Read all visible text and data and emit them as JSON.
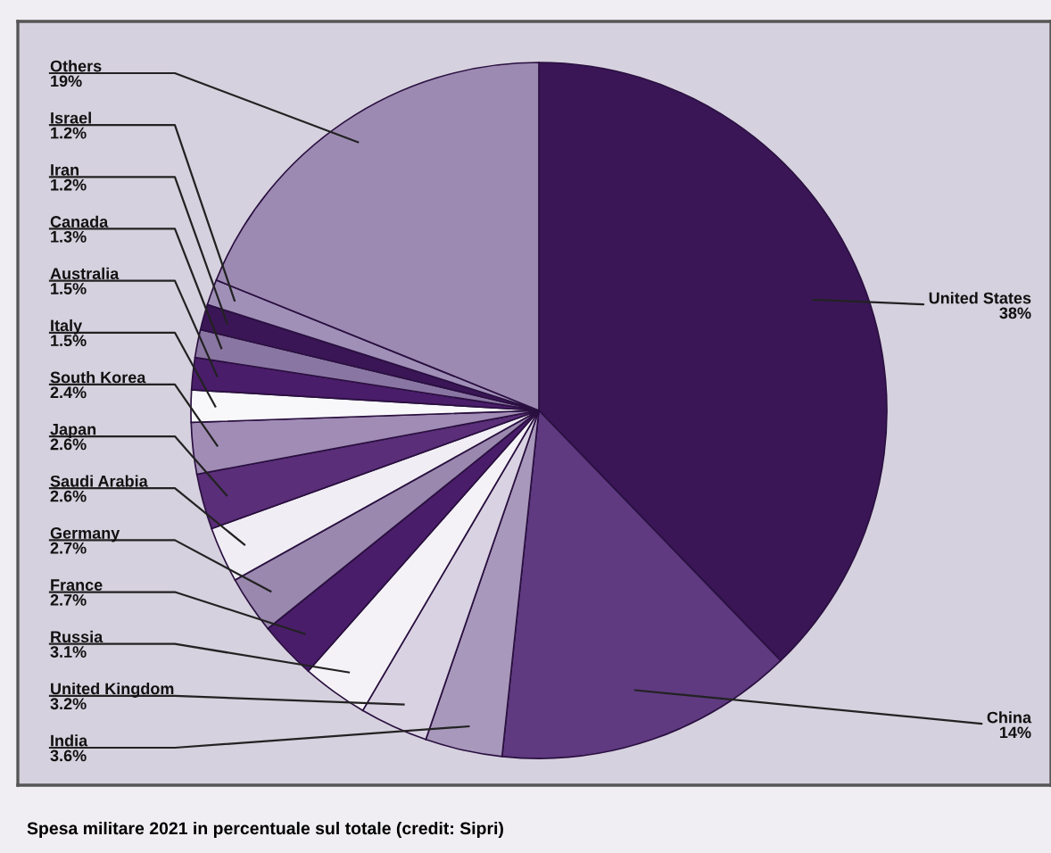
{
  "chart_data": {
    "type": "pie",
    "categories": [
      "United States",
      "China",
      "India",
      "United Kingdom",
      "Russia",
      "France",
      "Germany",
      "Saudi Arabia",
      "Japan",
      "South Korea",
      "Italy",
      "Australia",
      "Canada",
      "Iran",
      "Israel",
      "Others"
    ],
    "values": [
      38,
      14,
      3.6,
      3.2,
      3.1,
      2.7,
      2.7,
      2.6,
      2.6,
      2.4,
      1.5,
      1.5,
      1.3,
      1.2,
      1.2,
      19
    ],
    "colors": [
      "#3a1656",
      "#5f3a80",
      "#a898bb",
      "#d9d2e2",
      "#f4f2f6",
      "#4a1d6a",
      "#9a88ae",
      "#f0eef4",
      "#5a2e78",
      "#a08cb5",
      "#f8f8fa",
      "#4a1d6a",
      "#8a76a2",
      "#3a1656",
      "#a090b8",
      "#9d8ab2"
    ],
    "value_labels": [
      "38%",
      "14%",
      "3.6%",
      "3.2%",
      "3.1%",
      "2.7%",
      "2.7%",
      "2.6%",
      "2.6%",
      "2.4%",
      "1.5%",
      "1.5%",
      "1.3%",
      "1.2%",
      "1.2%",
      "19%"
    ],
    "annotations": [
      "Spesa militare 2021 in percentuale sul totale (credit: Sipri)"
    ]
  }
}
